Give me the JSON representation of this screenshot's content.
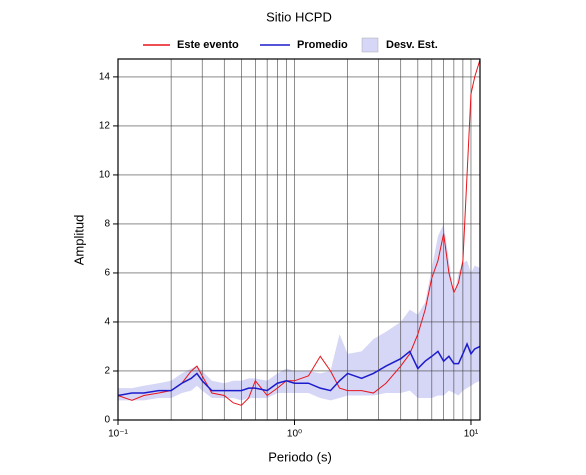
{
  "chart_data": {
    "type": "line",
    "title": "Sitio HCPD",
    "xlabel": "Periodo (s)",
    "ylabel": "Amplitud",
    "xscale": "log",
    "grid": true,
    "x": [
      0.1,
      0.12,
      0.14,
      0.17,
      0.2,
      0.23,
      0.26,
      0.28,
      0.3,
      0.34,
      0.4,
      0.45,
      0.5,
      0.55,
      0.6,
      0.7,
      0.8,
      0.9,
      1.0,
      1.2,
      1.4,
      1.6,
      1.8,
      2.0,
      2.4,
      2.8,
      3.3,
      4.0,
      4.5,
      5.0,
      5.5,
      6.0,
      6.5,
      7.0,
      7.5,
      8.0,
      8.5,
      9.0,
      9.5,
      10,
      10.5,
      11.25
    ],
    "series": [
      {
        "name": "Este evento",
        "color": "#e8141b",
        "values": [
          1.0,
          0.8,
          1.0,
          1.1,
          1.2,
          1.5,
          2.0,
          2.2,
          1.8,
          1.1,
          1.0,
          0.7,
          0.6,
          0.9,
          1.6,
          1.0,
          1.3,
          1.6,
          1.6,
          1.8,
          2.6,
          2.0,
          1.3,
          1.2,
          1.2,
          1.1,
          1.5,
          2.2,
          2.7,
          3.5,
          4.5,
          5.8,
          6.5,
          7.6,
          6.0,
          5.2,
          5.6,
          6.5,
          10.0,
          13.3,
          14.0,
          14.7
        ]
      },
      {
        "name": "Promedio",
        "color": "#1c1ccc",
        "values": [
          1.0,
          1.1,
          1.1,
          1.2,
          1.2,
          1.5,
          1.7,
          1.9,
          1.6,
          1.2,
          1.2,
          1.2,
          1.2,
          1.3,
          1.3,
          1.2,
          1.5,
          1.6,
          1.5,
          1.5,
          1.3,
          1.2,
          1.6,
          1.9,
          1.7,
          1.9,
          2.2,
          2.5,
          2.8,
          2.1,
          2.4,
          2.6,
          2.8,
          2.4,
          2.6,
          2.3,
          2.3,
          2.7,
          3.1,
          2.7,
          2.9,
          3.0
        ]
      },
      {
        "name": "Desv. Est.",
        "color": "#d6d6f6",
        "upper": [
          1.3,
          1.3,
          1.4,
          1.5,
          1.6,
          1.9,
          2.1,
          2.2,
          2.0,
          1.6,
          1.5,
          1.6,
          1.6,
          1.7,
          1.7,
          1.6,
          1.9,
          2.1,
          2.0,
          2.0,
          1.9,
          2.0,
          3.5,
          2.7,
          2.8,
          3.3,
          3.6,
          4.0,
          4.5,
          4.3,
          4.8,
          6.2,
          7.5,
          8.0,
          6.5,
          5.0,
          6.0,
          6.4,
          6.5,
          6.0,
          6.3,
          6.2
        ],
        "lower": [
          0.8,
          0.8,
          0.8,
          0.9,
          0.9,
          1.1,
          1.2,
          1.4,
          1.2,
          0.9,
          0.9,
          0.9,
          0.8,
          0.9,
          0.9,
          0.9,
          1.1,
          1.1,
          1.1,
          1.1,
          0.9,
          0.8,
          0.9,
          1.0,
          1.0,
          1.0,
          1.1,
          1.1,
          1.2,
          0.9,
          0.9,
          0.9,
          1.0,
          1.0,
          1.2,
          1.1,
          1.0,
          1.2,
          1.3,
          1.4,
          1.5,
          1.6
        ]
      }
    ],
    "xlim": [
      0.1,
      11.25
    ],
    "ylim": [
      0,
      14.73
    ],
    "xticks": [
      {
        "value": 0.1,
        "label": "10⁻¹"
      },
      {
        "value": 1,
        "label": "10⁰"
      },
      {
        "value": 10,
        "label": "10¹"
      }
    ],
    "xminor_ticks": [
      0.2,
      0.3,
      0.4,
      0.5,
      0.6,
      0.7,
      0.8,
      0.9,
      2,
      3,
      4,
      5,
      6,
      7,
      8,
      9
    ],
    "yticks": [
      0,
      2,
      4,
      6,
      8,
      10,
      12,
      14
    ]
  }
}
